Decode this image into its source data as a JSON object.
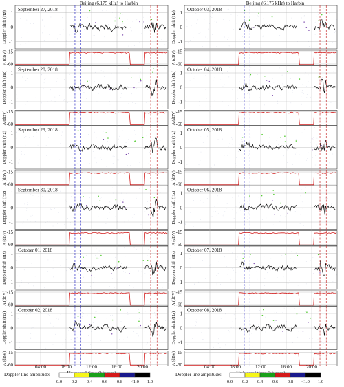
{
  "chart_data": {
    "type": "line",
    "columns": [
      {
        "title": "Beijing (6,175 kHz) to Harbin",
        "panels": [
          {
            "date": "September 27, 2018",
            "seed": 11
          },
          {
            "date": "September 28, 2018",
            "seed": 12
          },
          {
            "date": "September 29, 2018",
            "seed": 13
          },
          {
            "date": "September 30, 2018",
            "seed": 14
          },
          {
            "date": "October 01, 2018",
            "seed": 15
          },
          {
            "date": "October 02, 2018",
            "seed": 16
          }
        ]
      },
      {
        "title": "Beijing (6,175 kHz) to Harbin",
        "panels": [
          {
            "date": "October 03, 2018",
            "seed": 21
          },
          {
            "date": "October 04, 2018",
            "seed": 22
          },
          {
            "date": "October 05, 2018",
            "seed": 23
          },
          {
            "date": "October 06, 2018",
            "seed": 24
          },
          {
            "date": "October 07, 2018",
            "seed": 25
          },
          {
            "date": "October 08, 2018",
            "seed": 26
          }
        ]
      }
    ],
    "x_axis": {
      "label": "Universal time (hh:mm)",
      "range_hours": [
        0,
        24
      ],
      "ticks": [
        {
          "hour": 4,
          "label": "04:00"
        },
        {
          "hour": 8,
          "label": "08:00"
        },
        {
          "hour": 12,
          "label": "12:00"
        },
        {
          "hour": 16,
          "label": "16:00"
        },
        {
          "hour": 20,
          "label": "20:00"
        }
      ]
    },
    "doppler_axis": {
      "label": "Doppler shift (Hz)",
      "range": [
        -1.5,
        1.5
      ],
      "ticks": [
        {
          "v": -1,
          "label": "-1"
        },
        {
          "v": 0,
          "label": "0"
        },
        {
          "v": 1,
          "label": "1"
        }
      ]
    },
    "amplitude_axis": {
      "label": "A (dBV)",
      "range": [
        -65,
        -10
      ],
      "ticks": [
        {
          "v": -15,
          "label": "-15"
        },
        {
          "v": -60,
          "label": "-60"
        }
      ]
    },
    "marker_lines": {
      "blue_dashed_hours": [
        9.4,
        10.3
      ],
      "red_dashed_hours": [
        21.3,
        22.3
      ]
    },
    "colorbar": {
      "label": "Doppler line amplitude:",
      "ticks": [
        "0.0",
        "0.2",
        "0.4",
        "0.6",
        "0.8",
        "<1.0",
        "1.0"
      ],
      "colors": [
        "#ffffff",
        "#f6f61a",
        "#1aa01a",
        "#d41a1a",
        "#1a1a8c",
        "#000000"
      ]
    },
    "colors": {
      "doppler_trace": "#111111",
      "amplitude_trace": "#d21f1f",
      "blue_marker": "#3030c8",
      "red_marker": "#c83030",
      "grid": "#b0b0b0",
      "green_scatter": "#55cc33",
      "purple_scatter": "#7744aa"
    }
  }
}
